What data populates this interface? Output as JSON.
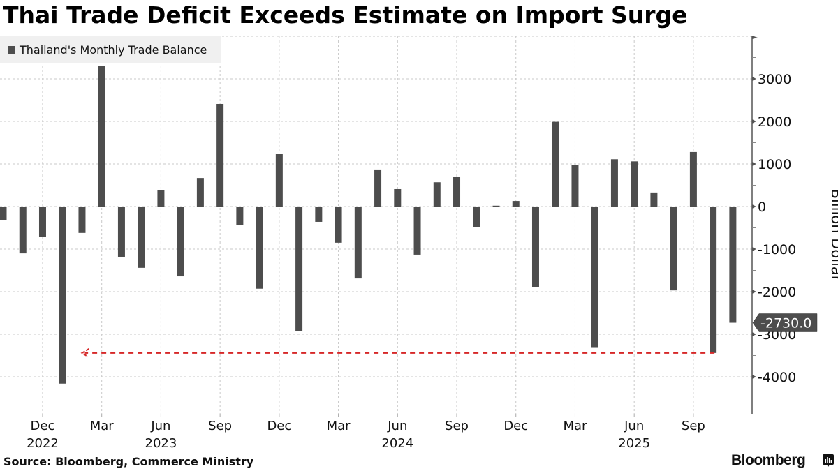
{
  "header": {
    "title": "Thai Trade Deficit Exceeds Estimate on Import Surge"
  },
  "legend": {
    "label": "Thailand's Monthly Trade Balance",
    "swatch_color": "#4d4d4d"
  },
  "footer": {
    "source": "Source: Bloomberg, Commerce Ministry",
    "brand": "Bloomberg",
    "brand_icon": "bloomberg-terminal-icon"
  },
  "chart_data": {
    "type": "bar",
    "title": "Thai Trade Deficit Exceeds Estimate on Import Surge",
    "xlabel": "",
    "ylabel": "Billion Dollar",
    "ylim": [
      -4800,
      4000
    ],
    "yticks": [
      3000,
      2000,
      1000,
      0,
      -1000,
      -2000,
      -3000,
      -4000
    ],
    "ytick_labels": [
      "3000",
      "2000",
      "1000",
      "0",
      "-1000",
      "-2000",
      "-3000",
      "-4000"
    ],
    "grid": true,
    "legend_position": "top-left",
    "bar_color": "#4d4d4d",
    "categories": [
      "2022-10",
      "2022-11",
      "2022-12",
      "2023-01",
      "2023-02",
      "2023-03",
      "2023-04",
      "2023-05",
      "2023-06",
      "2023-07",
      "2023-08",
      "2023-09",
      "2023-10",
      "2023-11",
      "2023-12",
      "2024-01",
      "2024-02",
      "2024-03",
      "2024-04",
      "2024-05",
      "2024-06",
      "2024-07",
      "2024-08",
      "2024-09",
      "2024-10",
      "2024-11",
      "2024-12",
      "2025-01",
      "2025-02",
      "2025-03",
      "2025-04",
      "2025-05",
      "2025-06",
      "2025-07",
      "2025-08",
      "2025-09",
      "2025-10",
      "2025-11"
    ],
    "series": [
      {
        "name": "Thailand's Monthly Trade Balance",
        "values": [
          -320,
          -1100,
          -720,
          -4160,
          -620,
          3300,
          -1180,
          -1440,
          380,
          -1640,
          670,
          2410,
          -430,
          -1930,
          1230,
          -2930,
          -360,
          -850,
          -1690,
          870,
          410,
          -1130,
          570,
          690,
          -480,
          20,
          130,
          -1890,
          1990,
          970,
          -3320,
          1110,
          1060,
          330,
          -1970,
          1280,
          -3440,
          -2730
        ]
      }
    ],
    "x_tick_labels": [
      {
        "month": "2022-12",
        "label": "Dec",
        "year": "2022"
      },
      {
        "month": "2023-03",
        "label": "Mar",
        "year": ""
      },
      {
        "month": "2023-06",
        "label": "Jun",
        "year": "2023"
      },
      {
        "month": "2023-09",
        "label": "Sep",
        "year": ""
      },
      {
        "month": "2023-12",
        "label": "Dec",
        "year": ""
      },
      {
        "month": "2024-03",
        "label": "Mar",
        "year": ""
      },
      {
        "month": "2024-06",
        "label": "Jun",
        "year": "2024"
      },
      {
        "month": "2024-09",
        "label": "Sep",
        "year": ""
      },
      {
        "month": "2024-12",
        "label": "Dec",
        "year": ""
      },
      {
        "month": "2025-03",
        "label": "Mar",
        "year": ""
      },
      {
        "month": "2025-06",
        "label": "Jun",
        "year": "2025"
      },
      {
        "month": "2025-09",
        "label": "Sep",
        "year": ""
      }
    ],
    "annotations": [
      {
        "type": "last-value-label",
        "value": -2730.0,
        "text": "-2730.0",
        "background": "#4d4d4d",
        "color": "#ffffff"
      },
      {
        "type": "dashed-arrow",
        "from_month": "2025-10",
        "to_month": "2023-02",
        "value": -3440,
        "color": "#d62728"
      }
    ]
  }
}
